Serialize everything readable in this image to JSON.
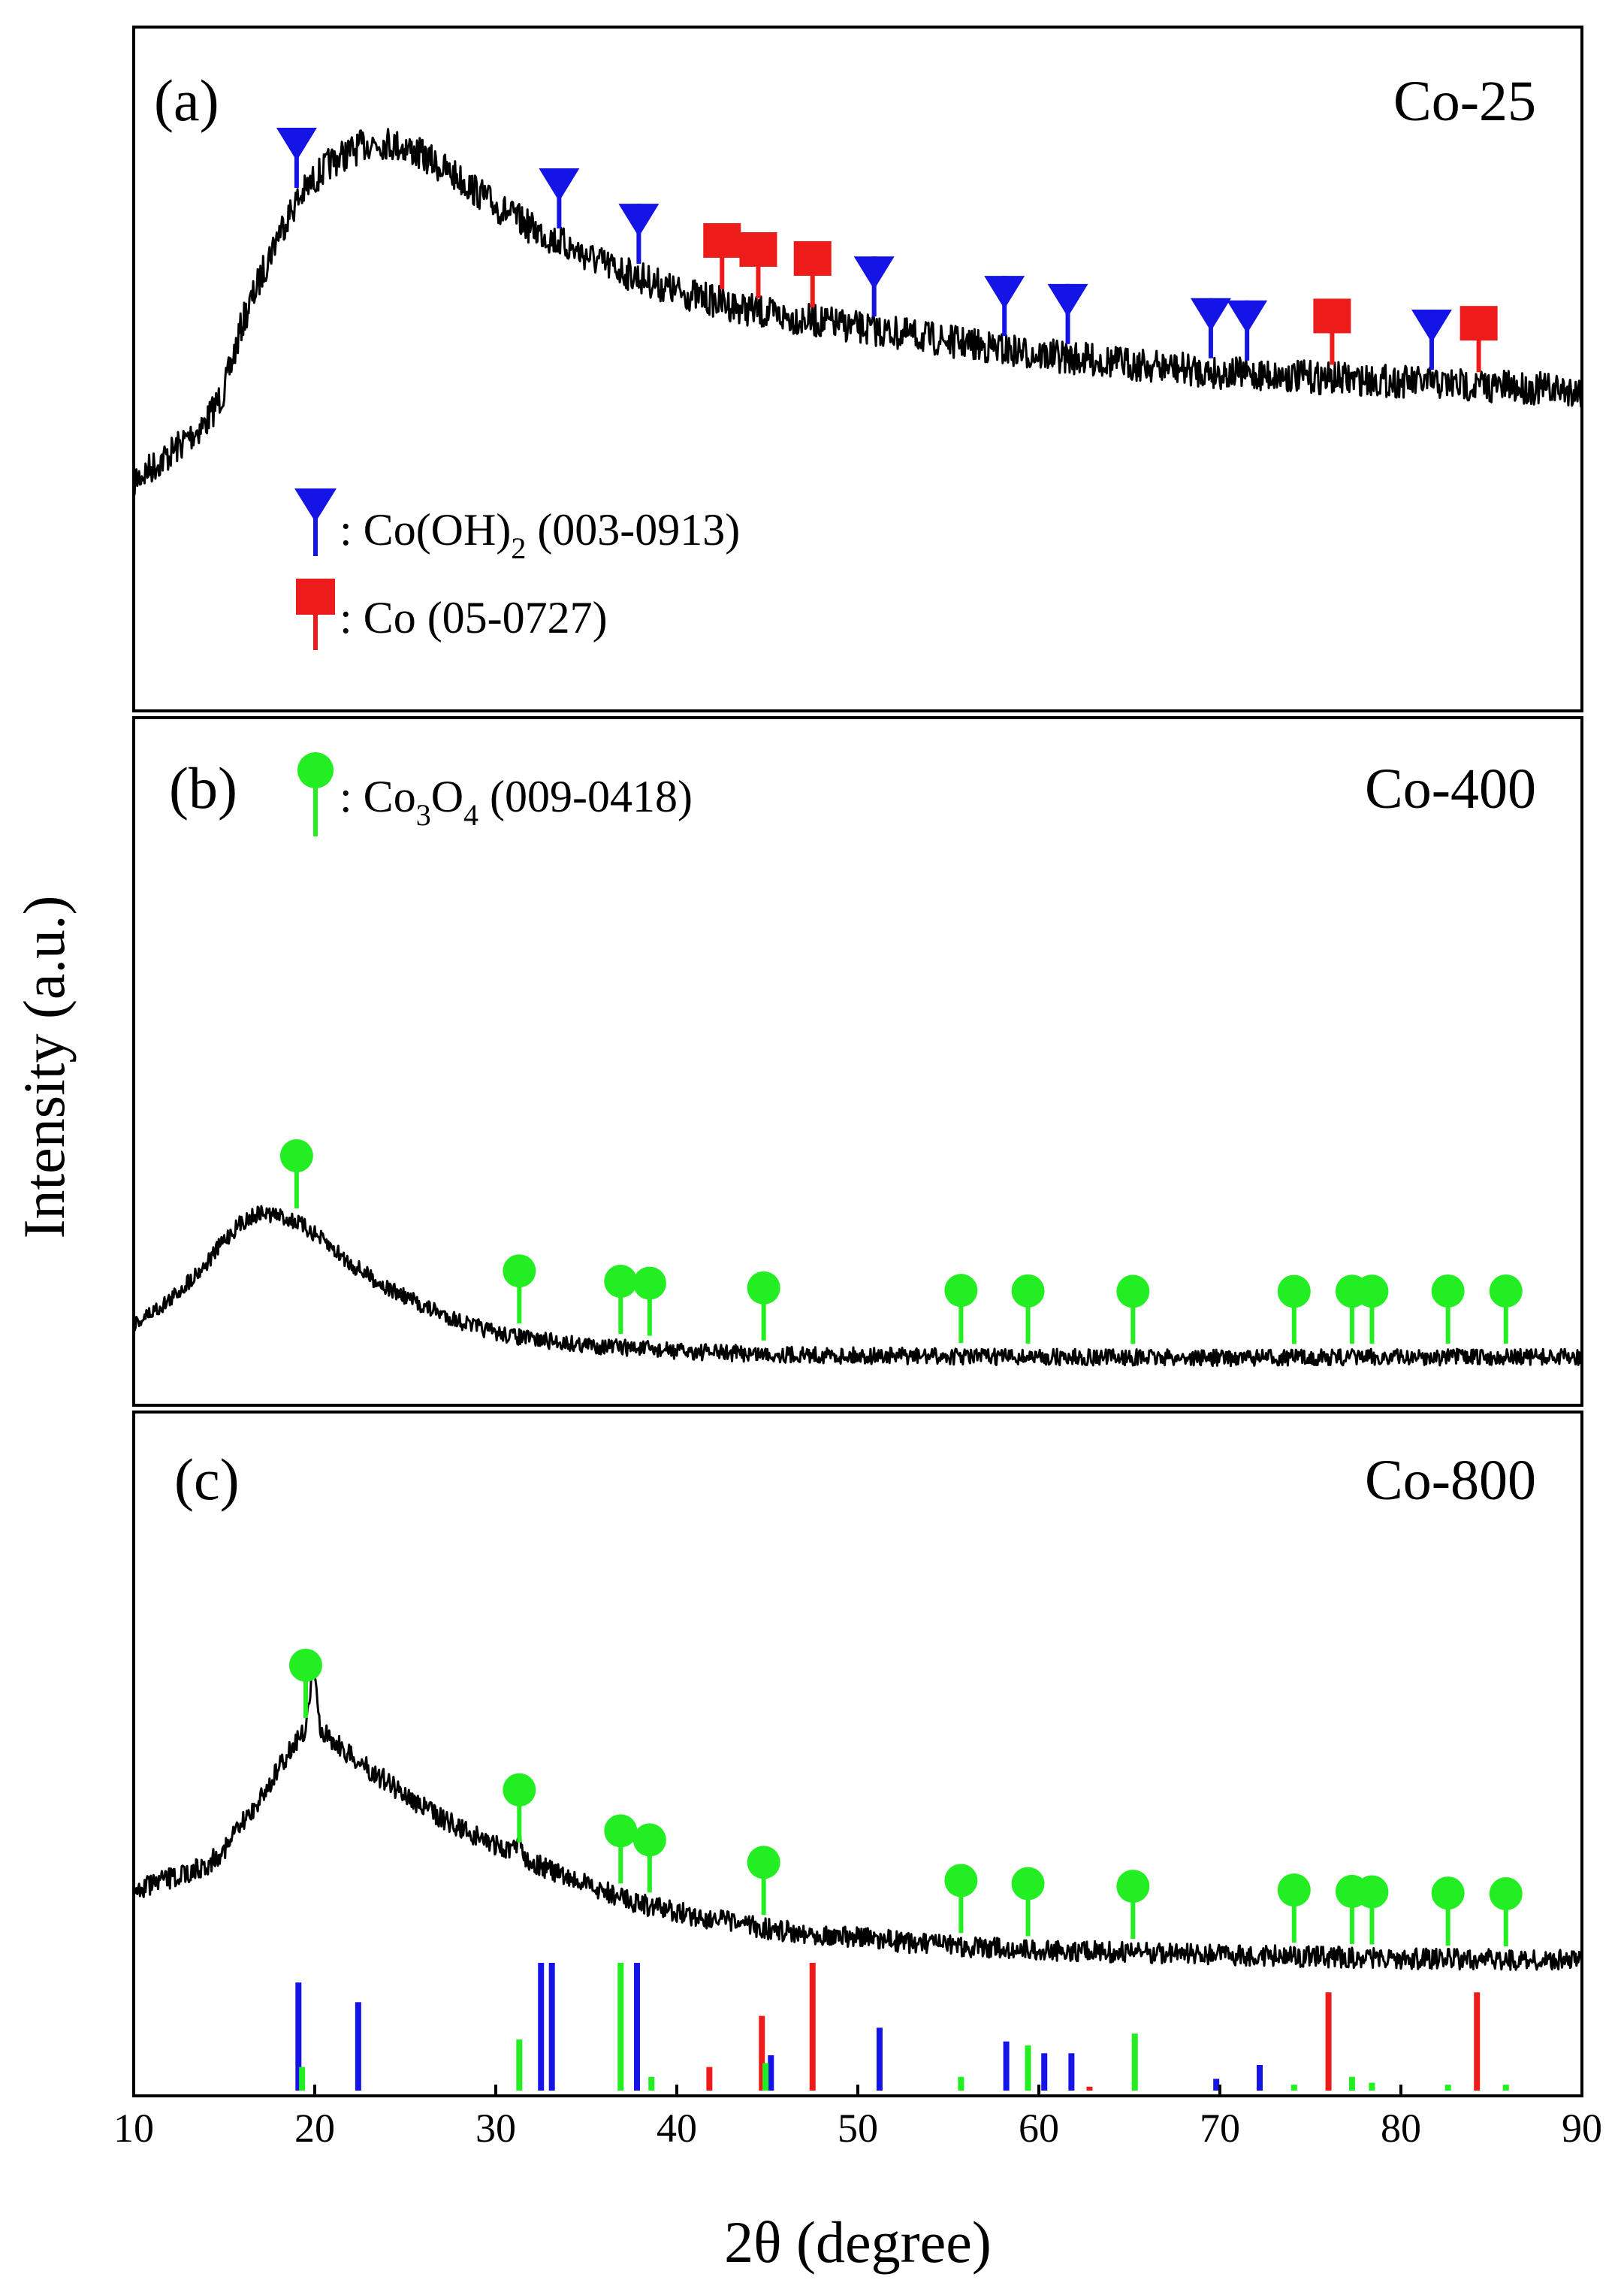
{
  "chart_data": {
    "type": "line",
    "xlabel": "2θ (degree)",
    "ylabel": "Intensity (a.u.)",
    "xlim": [
      10,
      90
    ],
    "xticks": [
      "10",
      "20",
      "30",
      "40",
      "50",
      "60",
      "70",
      "80",
      "90"
    ],
    "colors": {
      "co_oh2": "#1414e6",
      "co": "#ee1b1b",
      "co3o4": "#22ee22",
      "pattern": "#000000"
    },
    "panels": [
      {
        "id": "a",
        "label": "(a)",
        "sample": "Co-25",
        "ylim": [
          0,
          100
        ],
        "pattern": [
          [
            10,
            20
          ],
          [
            12,
            26
          ],
          [
            14,
            33
          ],
          [
            15,
            40
          ],
          [
            16,
            55
          ],
          [
            17,
            65
          ],
          [
            18,
            75
          ],
          [
            19,
            82
          ],
          [
            20,
            87
          ],
          [
            21,
            91
          ],
          [
            22,
            93
          ],
          [
            23,
            95
          ],
          [
            24,
            95
          ],
          [
            25,
            94
          ],
          [
            26,
            92
          ],
          [
            28,
            87
          ],
          [
            30,
            81
          ],
          [
            32,
            76
          ],
          [
            34,
            72
          ],
          [
            36,
            68
          ],
          [
            38,
            65
          ],
          [
            40,
            62
          ],
          [
            42,
            60
          ],
          [
            45,
            57
          ],
          [
            50,
            54
          ],
          [
            55,
            51
          ],
          [
            60,
            48
          ],
          [
            65,
            46
          ],
          [
            70,
            44
          ],
          [
            75,
            43
          ],
          [
            80,
            42
          ],
          [
            85,
            41
          ],
          [
            90,
            40
          ]
        ],
        "legend": [
          {
            "marker": "triangle",
            "series": "co_oh2",
            "prefix": ": Co(OH)",
            "sub": "2",
            "suffix": " (003-0913)"
          },
          {
            "marker": "square",
            "series": "co",
            "prefix": ": Co (05-0727)",
            "sub": "",
            "suffix": ""
          }
        ],
        "markers": [
          {
            "series": "co_oh2",
            "shape": "triangle",
            "x": [
              19.0,
              33.5,
              37.9,
              50.9,
              58.1,
              61.6,
              69.5,
              71.5,
              81.7
            ]
          },
          {
            "series": "co",
            "shape": "square",
            "x": [
              42.5,
              44.5,
              47.5,
              76.2,
              84.3
            ]
          }
        ]
      },
      {
        "id": "b",
        "label": "(b)",
        "sample": "Co-400",
        "ylim": [
          0,
          100
        ],
        "pattern": [
          [
            10,
            12
          ],
          [
            12,
            20
          ],
          [
            14,
            32
          ],
          [
            15,
            40
          ],
          [
            16,
            46
          ],
          [
            17,
            49
          ],
          [
            18,
            48
          ],
          [
            19,
            46
          ],
          [
            20,
            42
          ],
          [
            22,
            32
          ],
          [
            24,
            24
          ],
          [
            26,
            18
          ],
          [
            28,
            13
          ],
          [
            30,
            9
          ],
          [
            32,
            7
          ],
          [
            35,
            5
          ],
          [
            40,
            3
          ],
          [
            45,
            2
          ],
          [
            50,
            1.5
          ],
          [
            60,
            1
          ],
          [
            70,
            0.8
          ],
          [
            80,
            1
          ],
          [
            90,
            1
          ]
        ],
        "legend": [
          {
            "marker": "circle",
            "series": "co3o4",
            "prefix": ": Co",
            "sub": "3",
            "mid": "O",
            "sub2": "4",
            "suffix": " (009-0418)"
          }
        ],
        "markers": [
          {
            "series": "co3o4",
            "shape": "circle",
            "x": [
              19.0,
              31.3,
              36.9,
              38.5,
              44.8,
              55.7,
              59.4,
              65.2,
              74.1,
              77.3,
              78.4,
              82.6,
              85.8
            ]
          }
        ]
      },
      {
        "id": "c",
        "label": "(c)",
        "sample": "Co-800",
        "ylim": [
          0,
          100
        ],
        "pattern": [
          [
            10,
            22
          ],
          [
            12,
            25
          ],
          [
            14,
            28
          ],
          [
            15,
            32
          ],
          [
            16,
            38
          ],
          [
            17,
            44
          ],
          [
            18,
            51
          ],
          [
            19,
            58
          ],
          [
            20,
            62
          ],
          [
            21,
            58
          ],
          [
            22,
            54
          ],
          [
            24,
            48
          ],
          [
            26,
            42
          ],
          [
            28,
            37
          ],
          [
            30,
            33
          ],
          [
            32,
            29
          ],
          [
            34,
            25
          ],
          [
            36,
            22
          ],
          [
            38,
            19
          ],
          [
            40,
            17
          ],
          [
            45,
            13
          ],
          [
            50,
            11
          ],
          [
            55,
            9
          ],
          [
            60,
            8
          ],
          [
            70,
            7
          ],
          [
            80,
            6
          ],
          [
            90,
            5.5
          ]
        ],
        "spikes": [
          {
            "x": 19.9,
            "height": 12
          },
          {
            "x": 31.3,
            "height": 4
          }
        ],
        "markers": [
          {
            "series": "co3o4",
            "shape": "circle",
            "x": [
              19.5,
              31.3,
              36.9,
              38.5,
              44.8,
              55.7,
              59.4,
              65.2,
              74.1,
              77.3,
              78.4,
              82.6,
              85.8
            ]
          }
        ],
        "reference_sticks": [
          {
            "series": "co_oh2",
            "x": 19.1,
            "intensity": 55
          },
          {
            "series": "co_oh2",
            "x": 22.4,
            "intensity": 45
          },
          {
            "series": "co_oh2",
            "x": 32.5,
            "intensity": 65
          },
          {
            "series": "co_oh2",
            "x": 33.1,
            "intensity": 65
          },
          {
            "series": "co_oh2",
            "x": 37.8,
            "intensity": 65
          },
          {
            "series": "co_oh2",
            "x": 45.2,
            "intensity": 18
          },
          {
            "series": "co_oh2",
            "x": 51.2,
            "intensity": 32
          },
          {
            "series": "co_oh2",
            "x": 58.2,
            "intensity": 25
          },
          {
            "series": "co_oh2",
            "x": 60.3,
            "intensity": 19
          },
          {
            "series": "co_oh2",
            "x": 61.8,
            "intensity": 19
          },
          {
            "series": "co_oh2",
            "x": 69.8,
            "intensity": 6
          },
          {
            "series": "co_oh2",
            "x": 72.2,
            "intensity": 13
          },
          {
            "series": "co",
            "x": 41.8,
            "intensity": 12
          },
          {
            "series": "co",
            "x": 44.7,
            "intensity": 38
          },
          {
            "series": "co",
            "x": 47.5,
            "intensity": 65
          },
          {
            "series": "co",
            "x": 62.8,
            "intensity": 2
          },
          {
            "series": "co",
            "x": 76.0,
            "intensity": 50
          },
          {
            "series": "co",
            "x": 84.2,
            "intensity": 50
          },
          {
            "series": "co3o4",
            "x": 19.3,
            "intensity": 12
          },
          {
            "series": "co3o4",
            "x": 31.3,
            "intensity": 26
          },
          {
            "series": "co3o4",
            "x": 36.9,
            "intensity": 65
          },
          {
            "series": "co3o4",
            "x": 38.6,
            "intensity": 7
          },
          {
            "series": "co3o4",
            "x": 44.9,
            "intensity": 14
          },
          {
            "series": "co3o4",
            "x": 55.7,
            "intensity": 7
          },
          {
            "series": "co3o4",
            "x": 59.4,
            "intensity": 23
          },
          {
            "series": "co3o4",
            "x": 65.3,
            "intensity": 29
          },
          {
            "series": "co3o4",
            "x": 74.1,
            "intensity": 3
          },
          {
            "series": "co3o4",
            "x": 77.3,
            "intensity": 7
          },
          {
            "series": "co3o4",
            "x": 78.4,
            "intensity": 4
          },
          {
            "series": "co3o4",
            "x": 82.6,
            "intensity": 3
          },
          {
            "series": "co3o4",
            "x": 85.8,
            "intensity": 3
          }
        ]
      }
    ]
  }
}
